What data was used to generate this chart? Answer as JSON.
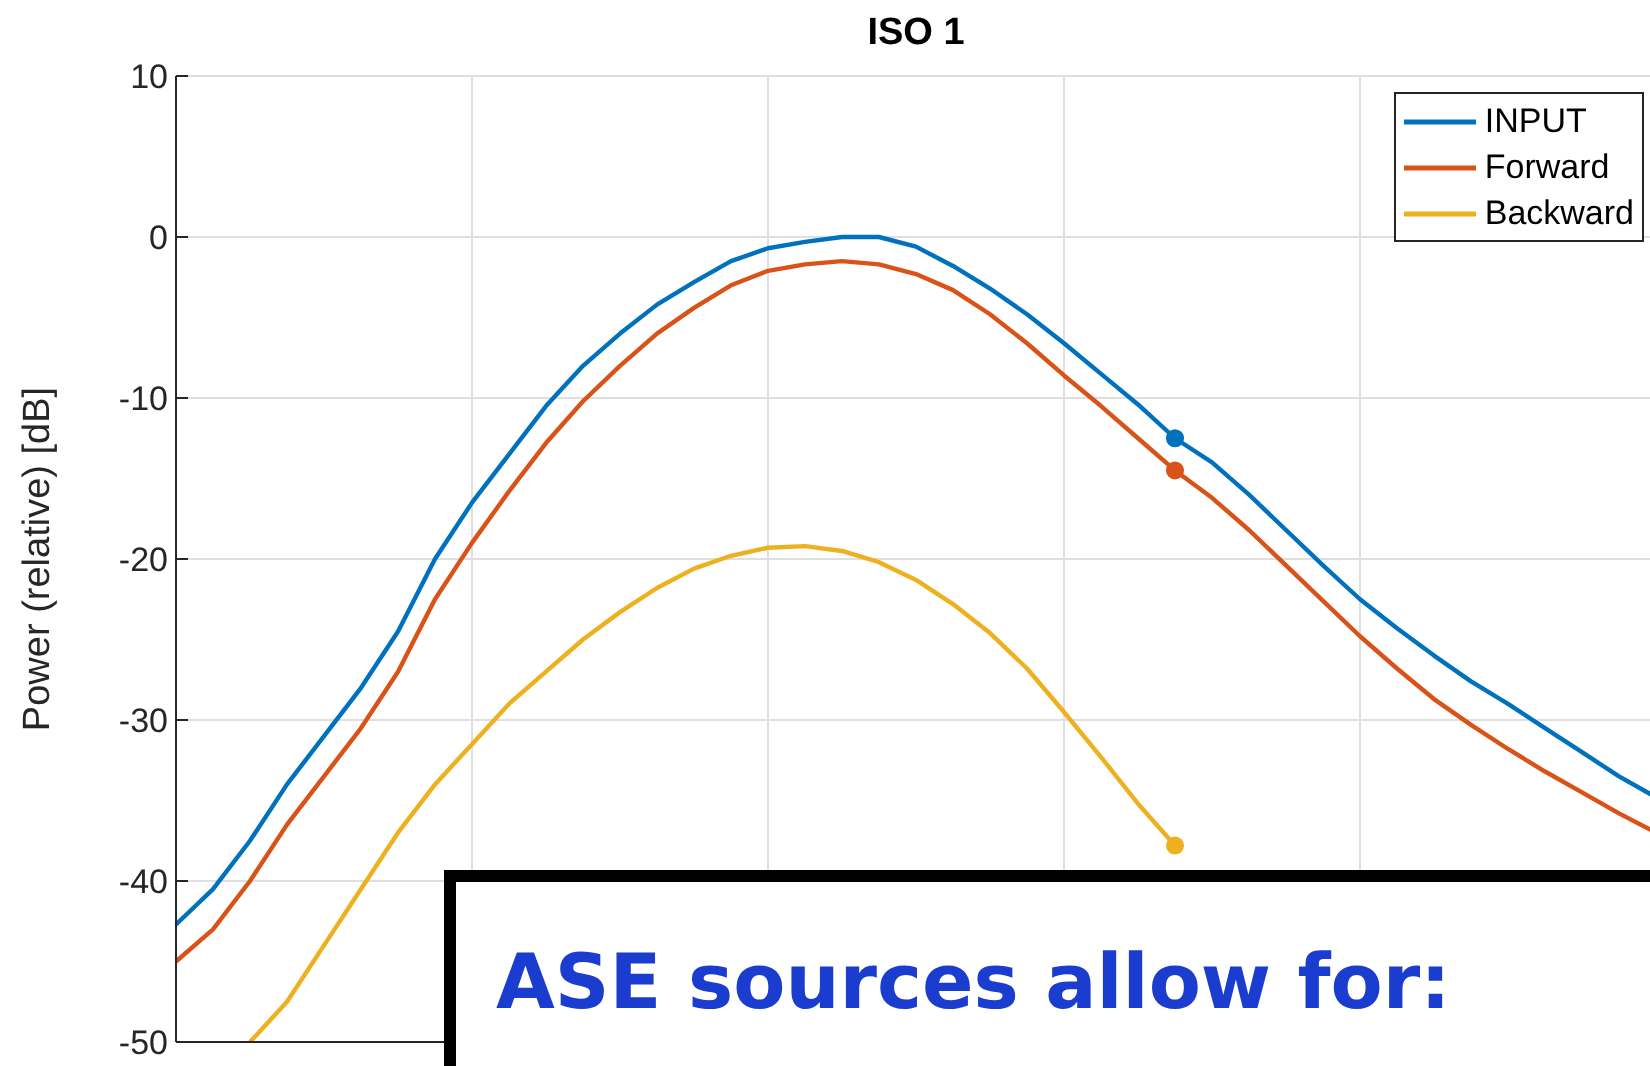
{
  "chart_data": {
    "type": "line",
    "title": "ISO 1",
    "ylabel": "Power (relative) [dB]",
    "categories": [
      null,
      null,
      null,
      null,
      null,
      null,
      null,
      null,
      null,
      null,
      null,
      null,
      null,
      null,
      null,
      null,
      null,
      null,
      null,
      null,
      null,
      null,
      null,
      null,
      null,
      null,
      null,
      null,
      null,
      null,
      null,
      null,
      null,
      null,
      null,
      null,
      null,
      null,
      null,
      null,
      null
    ],
    "series": [
      {
        "name": "INPUT",
        "color": "#0072bd",
        "marker": "none",
        "values": [
          -42.7,
          -40.5,
          -37.5,
          -34,
          -31,
          -28,
          -24.5,
          -20,
          -16.5,
          -13.5,
          -10.5,
          -8,
          -6,
          -4.2,
          -2.8,
          -1.5,
          -0.7,
          -0.3,
          0,
          0,
          -0.6,
          -1.8,
          -3.2,
          -4.8,
          -6.6,
          -8.5,
          -10.4,
          -12.5,
          -14,
          -16,
          -18.2,
          -20.4,
          -22.5,
          -24.3,
          -26,
          -27.6,
          -29,
          -30.5,
          -32,
          -33.5,
          -34.8
        ]
      },
      {
        "name": "Forward",
        "color": "#d95319",
        "marker": "none",
        "values": [
          -45,
          -43,
          -40,
          -36.5,
          -33.5,
          -30.5,
          -27,
          -22.5,
          -19,
          -15.8,
          -12.8,
          -10.2,
          -8,
          -6,
          -4.4,
          -3,
          -2.1,
          -1.7,
          -1.5,
          -1.7,
          -2.3,
          -3.3,
          -4.8,
          -6.6,
          -8.6,
          -10.5,
          -12.5,
          -14.5,
          -16.2,
          -18.2,
          -20.4,
          -22.6,
          -24.8,
          -26.8,
          -28.7,
          -30.3,
          -31.8,
          -33.2,
          -34.5,
          -35.8,
          -37
        ]
      },
      {
        "name": "Backward",
        "color": "#edb120",
        "marker": "none",
        "values": [
          null,
          null,
          -50,
          -47.5,
          -44,
          -40.5,
          -37,
          -34,
          -31.5,
          -29,
          -27,
          -25,
          -23.3,
          -21.8,
          -20.6,
          -19.8,
          -19.3,
          -19.2,
          -19.5,
          -20.2,
          -21.3,
          -22.8,
          -24.6,
          -26.8,
          -29.5,
          -32.3,
          -35.2,
          -37.8,
          null,
          null,
          null,
          null,
          null,
          null,
          null,
          null,
          null,
          null,
          null,
          null,
          null
        ]
      },
      {
        "type": "scatter",
        "color": "#0072bd",
        "marker": "circle",
        "values": [
          null,
          null,
          null,
          null,
          null,
          null,
          null,
          null,
          null,
          null,
          null,
          null,
          null,
          null,
          null,
          null,
          null,
          null,
          null,
          null,
          null,
          null,
          null,
          null,
          null,
          null,
          null,
          -12.5,
          null,
          null,
          null,
          null,
          null,
          null,
          null,
          null,
          null,
          null,
          null,
          null,
          null
        ]
      },
      {
        "type": "scatter",
        "color": "#d95319",
        "marker": "circle",
        "values": [
          null,
          null,
          null,
          null,
          null,
          null,
          null,
          null,
          null,
          null,
          null,
          null,
          null,
          null,
          null,
          null,
          null,
          null,
          null,
          null,
          null,
          null,
          null,
          null,
          null,
          null,
          null,
          -14.5,
          null,
          null,
          null,
          null,
          null,
          null,
          null,
          null,
          null,
          null,
          null,
          null,
          null
        ]
      },
      {
        "type": "scatter",
        "color": "#edb120",
        "marker": "circle",
        "values": [
          null,
          null,
          null,
          null,
          null,
          null,
          null,
          null,
          null,
          null,
          null,
          null,
          null,
          null,
          null,
          null,
          null,
          null,
          null,
          null,
          null,
          null,
          null,
          null,
          null,
          null,
          null,
          -37.8,
          null,
          null,
          null,
          null,
          null,
          null,
          null,
          null,
          null,
          null,
          null,
          null,
          null
        ]
      }
    ],
    "ylim": [
      -50,
      10
    ],
    "yticks": [
      -50,
      -40,
      -30,
      -20,
      -10,
      0,
      10
    ],
    "grid": true,
    "legend": "top right",
    "line_style": "solid",
    "annotations": [
      "ASE sources allow for:"
    ]
  }
}
